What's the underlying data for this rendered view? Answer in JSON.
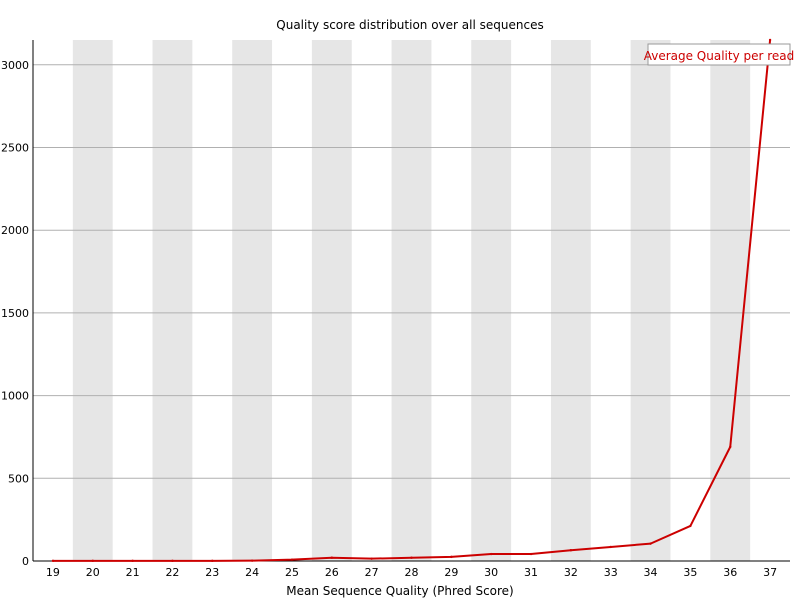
{
  "chart_data": {
    "type": "line",
    "title": "Quality score distribution over all sequences",
    "xlabel": "Mean Sequence Quality (Phred Score)",
    "ylabel": "",
    "categories": [
      "19",
      "20",
      "21",
      "22",
      "23",
      "24",
      "25",
      "26",
      "27",
      "28",
      "29",
      "30",
      "31",
      "32",
      "33",
      "34",
      "35",
      "36",
      "37"
    ],
    "x": [
      19,
      20,
      21,
      22,
      23,
      24,
      25,
      26,
      27,
      28,
      29,
      30,
      31,
      32,
      33,
      34,
      35,
      36,
      37
    ],
    "xlim": [
      18.5,
      37.5
    ],
    "yticks": [
      0,
      500,
      1000,
      1500,
      2000,
      2500,
      3000
    ],
    "ylim": [
      0,
      3150
    ],
    "series": [
      {
        "name": "Average Quality per read",
        "color": "#cc0000",
        "values": [
          1,
          1,
          1,
          1,
          1,
          2,
          8,
          20,
          14,
          20,
          25,
          42,
          42,
          65,
          85,
          105,
          212,
          690,
          3150
        ]
      }
    ],
    "legend": "top-right",
    "grid": true,
    "band_color": "#e6e6e6",
    "grid_color": "#b0b0b0"
  }
}
